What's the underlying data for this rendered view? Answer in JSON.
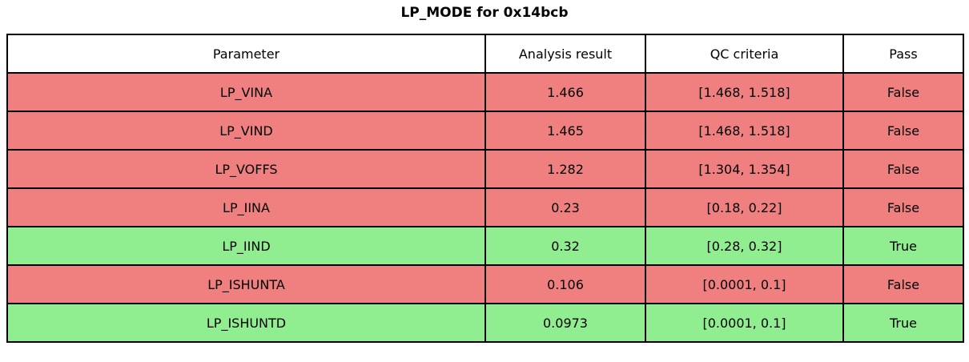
{
  "title": "LP_MODE for 0x14bcb",
  "colors": {
    "fail_row": "#f08080",
    "pass_row": "#90ee90",
    "header_bg": "#ffffff",
    "border": "#000000",
    "text": "#000000"
  },
  "table": {
    "headers": [
      "Parameter",
      "Analysis result",
      "QC criteria",
      "Pass"
    ],
    "rows": [
      {
        "parameter": "LP_VINA",
        "result": "1.466",
        "criteria": "[1.468, 1.518]",
        "pass": "False"
      },
      {
        "parameter": "LP_VIND",
        "result": "1.465",
        "criteria": "[1.468, 1.518]",
        "pass": "False"
      },
      {
        "parameter": "LP_VOFFS",
        "result": "1.282",
        "criteria": "[1.304, 1.354]",
        "pass": "False"
      },
      {
        "parameter": "LP_IINA",
        "result": "0.23",
        "criteria": "[0.18, 0.22]",
        "pass": "False"
      },
      {
        "parameter": "LP_IIND",
        "result": "0.32",
        "criteria": "[0.28, 0.32]",
        "pass": "True"
      },
      {
        "parameter": "LP_ISHUNTA",
        "result": "0.106",
        "criteria": "[0.0001, 0.1]",
        "pass": "False"
      },
      {
        "parameter": "LP_ISHUNTD",
        "result": "0.0973",
        "criteria": "[0.0001, 0.1]",
        "pass": "True"
      }
    ]
  },
  "chart_data": {
    "type": "table",
    "title": "LP_MODE for 0x14bcb",
    "columns": [
      "Parameter",
      "Analysis result",
      "QC criteria",
      "Pass"
    ],
    "rows": [
      [
        "LP_VINA",
        1.466,
        "[1.468, 1.518]",
        "False"
      ],
      [
        "LP_VIND",
        1.465,
        "[1.468, 1.518]",
        "False"
      ],
      [
        "LP_VOFFS",
        1.282,
        "[1.304, 1.354]",
        "False"
      ],
      [
        "LP_IINA",
        0.23,
        "[0.18, 0.22]",
        "False"
      ],
      [
        "LP_IIND",
        0.32,
        "[0.28, 0.32]",
        "True"
      ],
      [
        "LP_ISHUNTA",
        0.106,
        "[0.0001, 0.1]",
        "False"
      ],
      [
        "LP_ISHUNTD",
        0.0973,
        "[0.0001, 0.1]",
        "True"
      ]
    ],
    "row_status_colors": {
      "False": "#f08080",
      "True": "#90ee90"
    },
    "layout": "title centered above full-width bordered table; header row white; fail rows lightcoral; pass rows lightgreen"
  }
}
